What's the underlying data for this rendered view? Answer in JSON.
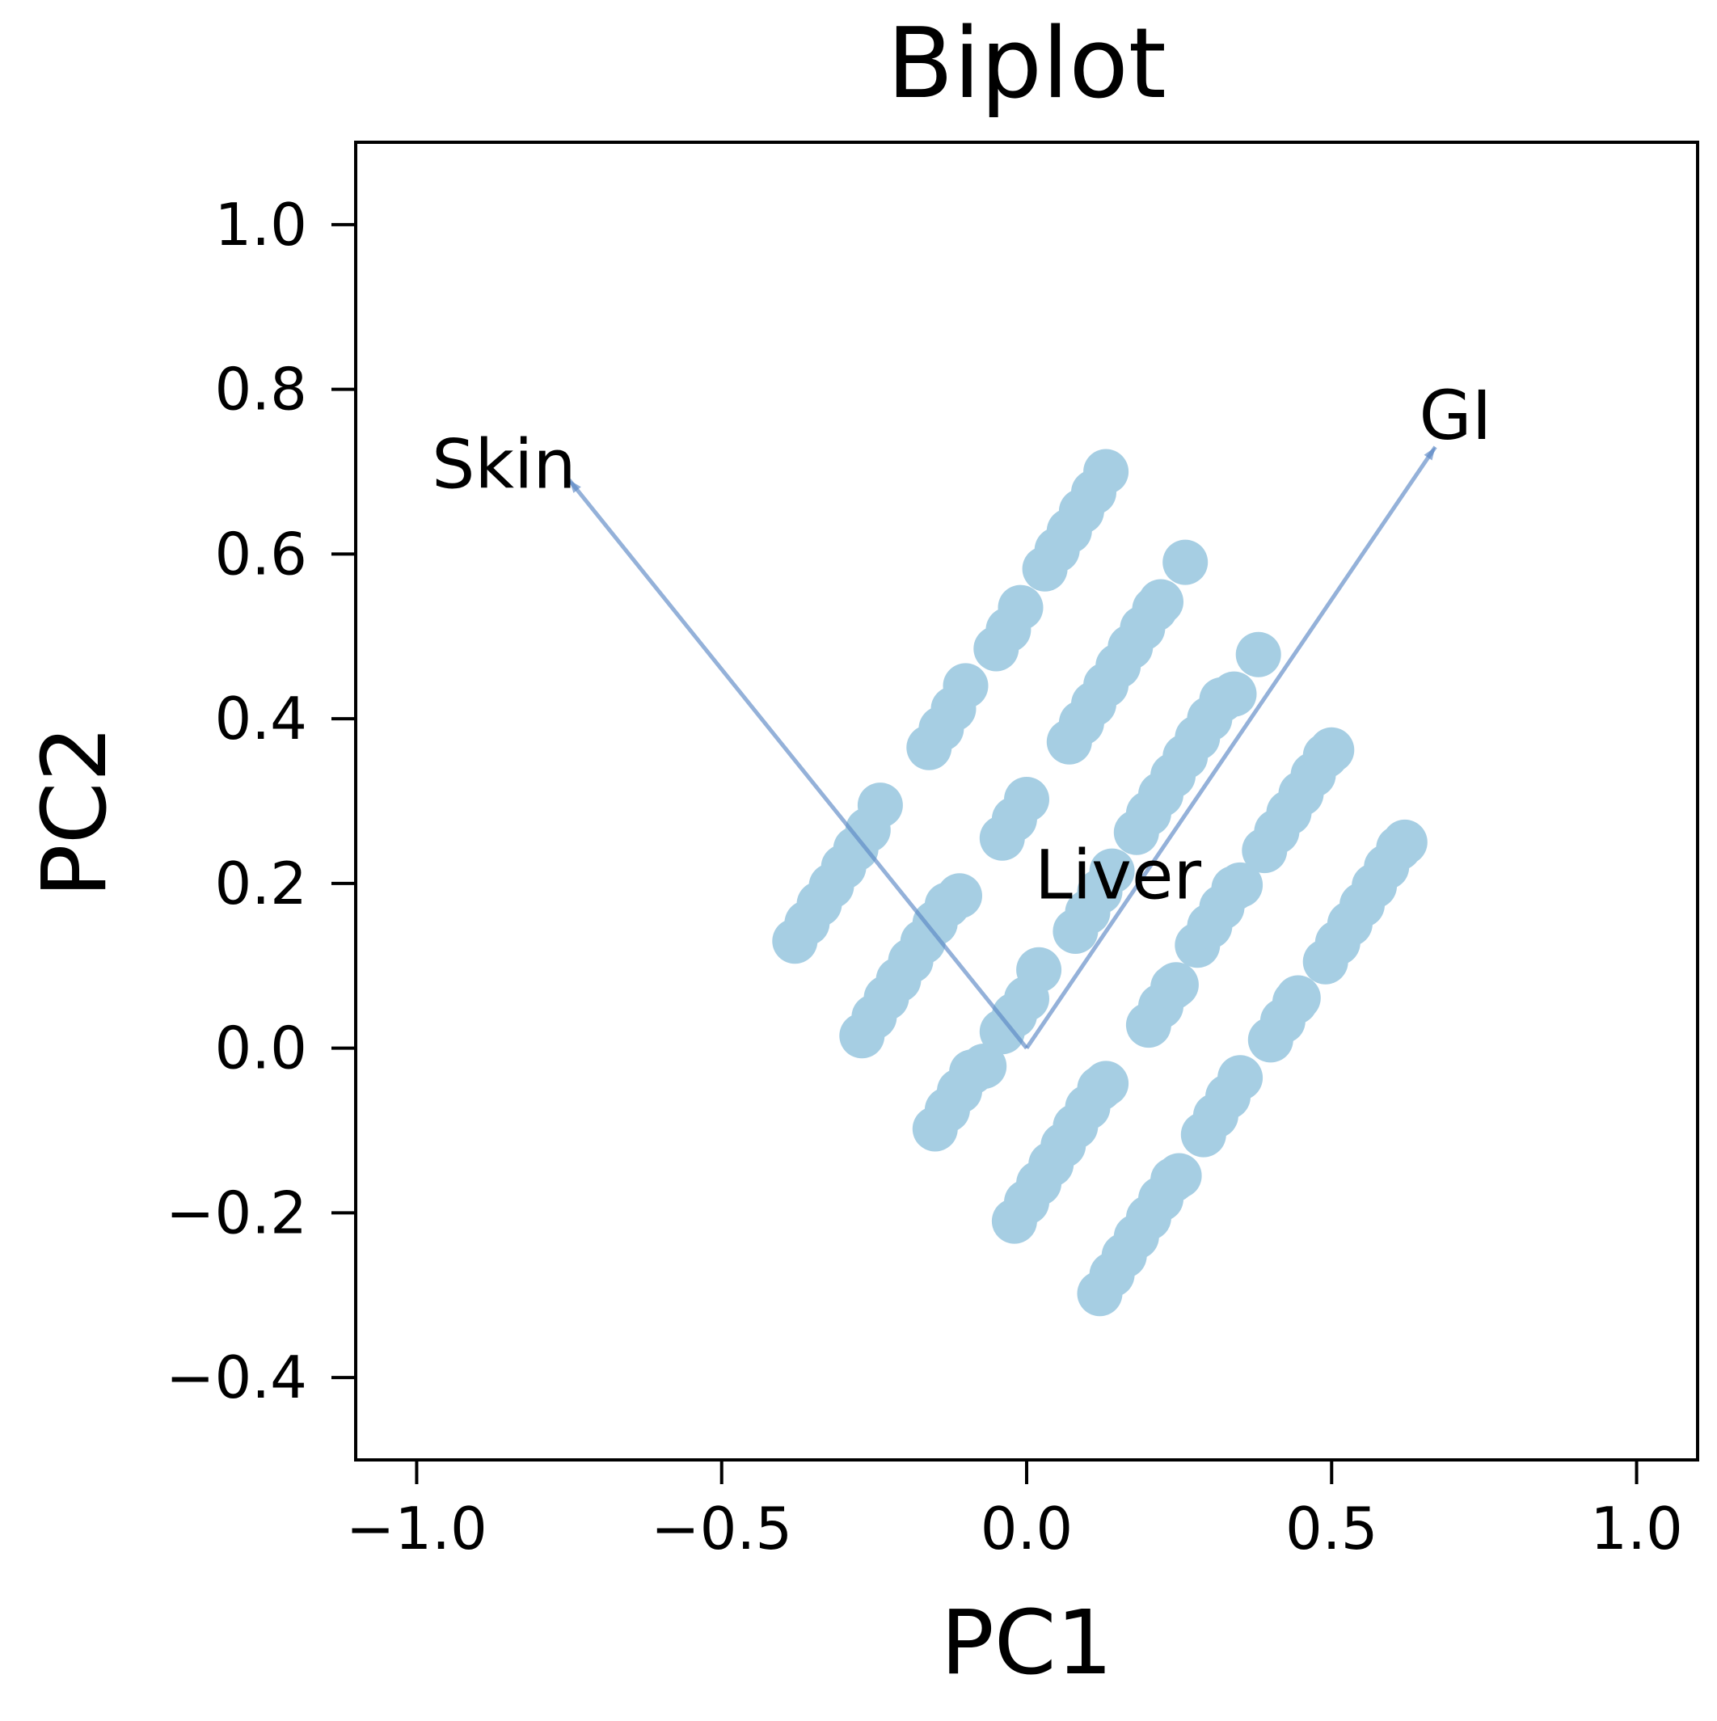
{
  "chart_data": {
    "type": "scatter",
    "title": "Biplot",
    "xlabel": "PC1",
    "ylabel": "PC2",
    "xlim": [
      -1.1,
      1.1
    ],
    "ylim": [
      -0.5,
      1.1
    ],
    "xticks": [
      -1.0,
      -0.5,
      0.0,
      0.5,
      1.0
    ],
    "xtick_labels": [
      "−1.0",
      "−0.5",
      "0.0",
      "0.5",
      "1.0"
    ],
    "yticks": [
      -0.4,
      -0.2,
      0.0,
      0.2,
      0.4,
      0.6,
      0.8,
      1.0
    ],
    "ytick_labels": [
      "−0.4",
      "−0.2",
      "0.0",
      "0.2",
      "0.4",
      "0.6",
      "0.8",
      "1.0"
    ],
    "grid": false,
    "point_color": "#a6cee3",
    "arrow_color": "#5b87c5",
    "points": [
      [
        -0.38,
        0.13
      ],
      [
        -0.36,
        0.152
      ],
      [
        -0.34,
        0.175
      ],
      [
        -0.32,
        0.197
      ],
      [
        -0.3,
        0.22
      ],
      [
        -0.28,
        0.242
      ],
      [
        -0.26,
        0.265
      ],
      [
        -0.24,
        0.295
      ],
      [
        -0.27,
        0.015
      ],
      [
        -0.25,
        0.038
      ],
      [
        -0.23,
        0.061
      ],
      [
        -0.21,
        0.083
      ],
      [
        -0.19,
        0.106
      ],
      [
        -0.17,
        0.129
      ],
      [
        -0.15,
        0.152
      ],
      [
        -0.13,
        0.174
      ],
      [
        -0.11,
        0.185
      ],
      [
        -0.15,
        -0.098
      ],
      [
        -0.13,
        -0.075
      ],
      [
        -0.11,
        -0.052
      ],
      [
        -0.09,
        -0.029
      ],
      [
        -0.07,
        -0.022
      ],
      [
        -0.16,
        0.365
      ],
      [
        -0.14,
        0.388
      ],
      [
        -0.12,
        0.412
      ],
      [
        -0.1,
        0.44
      ],
      [
        -0.05,
        0.485
      ],
      [
        -0.03,
        0.508
      ],
      [
        -0.01,
        0.535
      ],
      [
        0.03,
        0.582
      ],
      [
        0.05,
        0.605
      ],
      [
        0.07,
        0.628
      ],
      [
        0.09,
        0.652
      ],
      [
        0.11,
        0.675
      ],
      [
        0.13,
        0.7
      ],
      [
        -0.04,
        0.255
      ],
      [
        -0.02,
        0.278
      ],
      [
        0.0,
        0.302
      ],
      [
        -0.04,
        0.02
      ],
      [
        -0.02,
        0.04
      ],
      [
        0.0,
        0.06
      ],
      [
        0.02,
        0.095
      ],
      [
        0.08,
        0.142
      ],
      [
        0.1,
        0.165
      ],
      [
        0.12,
        0.19
      ],
      [
        0.14,
        0.215
      ],
      [
        -0.02,
        -0.21
      ],
      [
        0.0,
        -0.187
      ],
      [
        0.02,
        -0.164
      ],
      [
        0.04,
        -0.141
      ],
      [
        0.06,
        -0.118
      ],
      [
        0.08,
        -0.095
      ],
      [
        0.1,
        -0.072
      ],
      [
        0.12,
        -0.049
      ],
      [
        0.13,
        -0.043
      ],
      [
        0.12,
        -0.298
      ],
      [
        0.14,
        -0.275
      ],
      [
        0.16,
        -0.252
      ],
      [
        0.18,
        -0.229
      ],
      [
        0.2,
        -0.206
      ],
      [
        0.22,
        -0.183
      ],
      [
        0.24,
        -0.16
      ],
      [
        0.25,
        -0.155
      ],
      [
        0.07,
        0.372
      ],
      [
        0.09,
        0.395
      ],
      [
        0.11,
        0.418
      ],
      [
        0.13,
        0.441
      ],
      [
        0.15,
        0.464
      ],
      [
        0.17,
        0.487
      ],
      [
        0.19,
        0.51
      ],
      [
        0.21,
        0.533
      ],
      [
        0.22,
        0.542
      ],
      [
        0.26,
        0.59
      ],
      [
        0.18,
        0.262
      ],
      [
        0.2,
        0.285
      ],
      [
        0.22,
        0.308
      ],
      [
        0.24,
        0.331
      ],
      [
        0.26,
        0.354
      ],
      [
        0.28,
        0.377
      ],
      [
        0.3,
        0.4
      ],
      [
        0.32,
        0.423
      ],
      [
        0.34,
        0.43
      ],
      [
        0.38,
        0.478
      ],
      [
        0.2,
        0.028
      ],
      [
        0.22,
        0.051
      ],
      [
        0.24,
        0.074
      ],
      [
        0.245,
        0.077
      ],
      [
        0.28,
        0.125
      ],
      [
        0.3,
        0.148
      ],
      [
        0.32,
        0.171
      ],
      [
        0.34,
        0.194
      ],
      [
        0.35,
        0.198
      ],
      [
        0.29,
        -0.105
      ],
      [
        0.31,
        -0.082
      ],
      [
        0.33,
        -0.059
      ],
      [
        0.35,
        -0.036
      ],
      [
        0.4,
        0.01
      ],
      [
        0.42,
        0.033
      ],
      [
        0.44,
        0.056
      ],
      [
        0.445,
        0.061
      ],
      [
        0.39,
        0.24
      ],
      [
        0.41,
        0.263
      ],
      [
        0.43,
        0.286
      ],
      [
        0.45,
        0.309
      ],
      [
        0.47,
        0.332
      ],
      [
        0.49,
        0.355
      ],
      [
        0.5,
        0.362
      ],
      [
        0.49,
        0.105
      ],
      [
        0.51,
        0.128
      ],
      [
        0.53,
        0.151
      ],
      [
        0.55,
        0.174
      ],
      [
        0.57,
        0.197
      ],
      [
        0.59,
        0.22
      ],
      [
        0.61,
        0.243
      ],
      [
        0.62,
        0.25
      ]
    ],
    "loadings": [
      {
        "name": "Skin",
        "x": -0.75,
        "y": 0.69
      },
      {
        "name": "GI",
        "x": 0.67,
        "y": 0.73
      },
      {
        "name": "Liver",
        "x": 0.0,
        "y": 0.0
      }
    ]
  }
}
